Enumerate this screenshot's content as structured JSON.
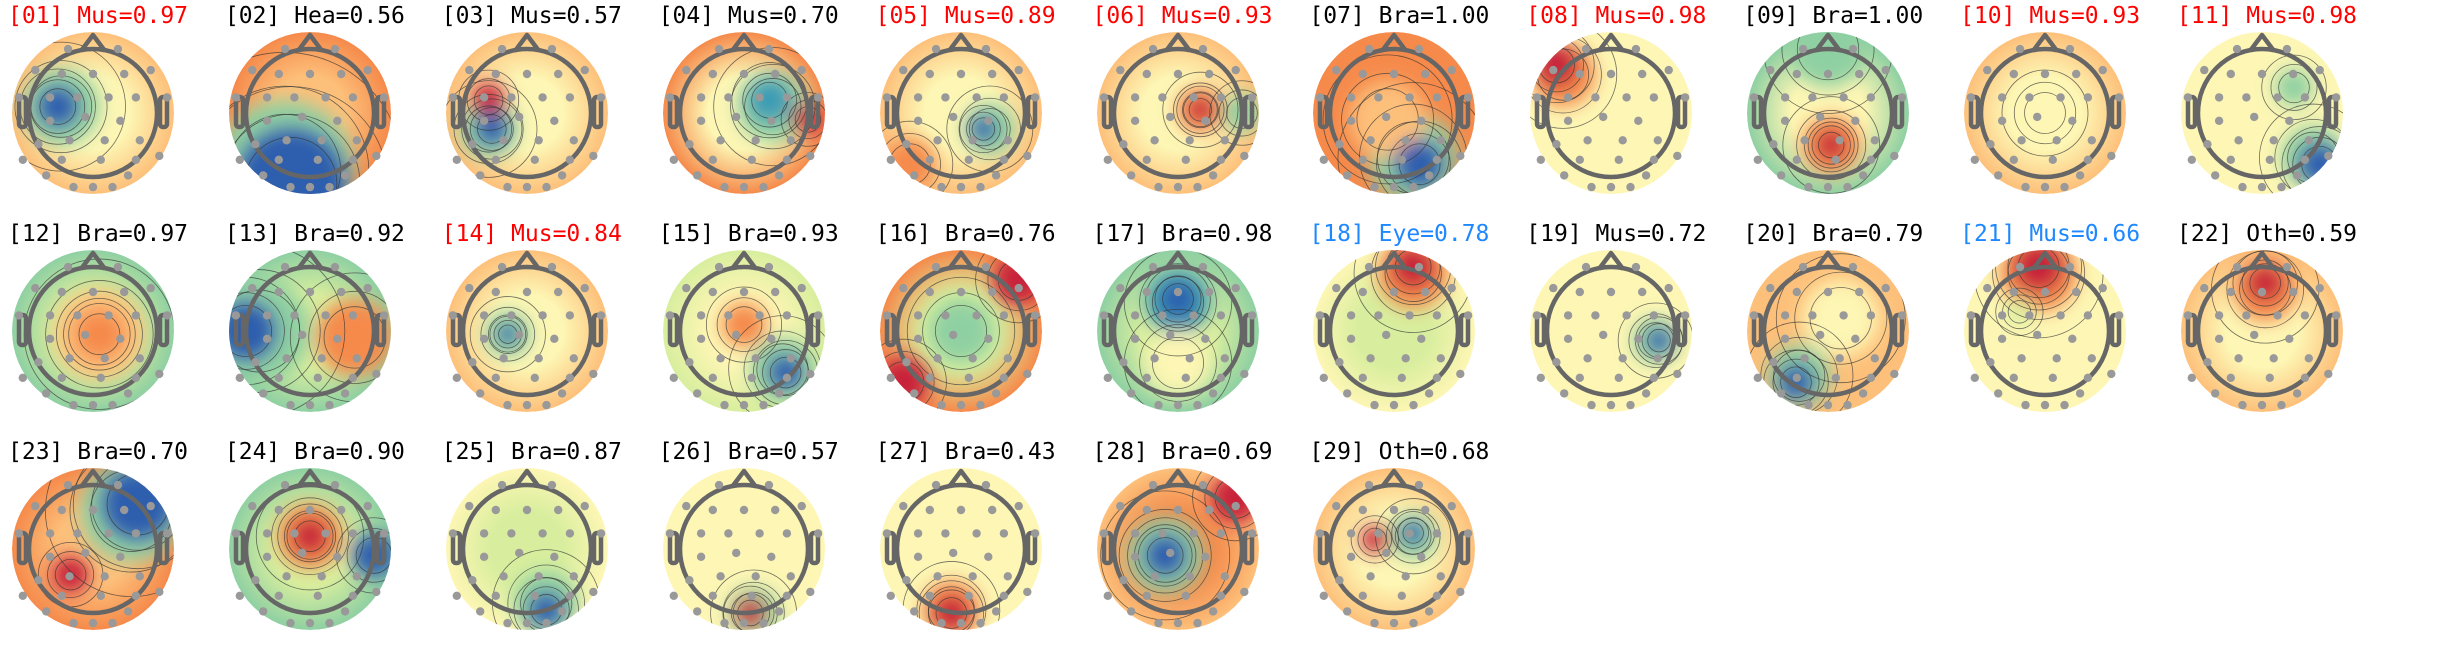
{
  "chart_data": {
    "type": "topomap",
    "layout": {
      "columns": 11,
      "rows": 3
    },
    "colormap": "spectral (red-yellow-blue)",
    "label_colors": {
      "default": "#000000",
      "red": "#ff0000",
      "blue": "#1e88ff"
    },
    "components": [
      {
        "title": "[01] Mus=0.97",
        "color": "red"
      },
      {
        "title": "[02] Hea=0.56",
        "color": "default"
      },
      {
        "title": "[03] Mus=0.57",
        "color": "default"
      },
      {
        "title": "[04] Mus=0.70",
        "color": "default"
      },
      {
        "title": "[05] Mus=0.89",
        "color": "red"
      },
      {
        "title": "[06] Mus=0.93",
        "color": "red"
      },
      {
        "title": "[07] Bra=1.00",
        "color": "default"
      },
      {
        "title": "[08] Mus=0.98",
        "color": "red"
      },
      {
        "title": "[09] Bra=1.00",
        "color": "default"
      },
      {
        "title": "[10] Mus=0.93",
        "color": "red"
      },
      {
        "title": "[11] Mus=0.98",
        "color": "red"
      },
      {
        "title": "[12] Bra=0.97",
        "color": "default"
      },
      {
        "title": "[13] Bra=0.92",
        "color": "default"
      },
      {
        "title": "[14] Mus=0.84",
        "color": "red"
      },
      {
        "title": "[15] Bra=0.93",
        "color": "default"
      },
      {
        "title": "[16] Bra=0.76",
        "color": "default"
      },
      {
        "title": "[17] Bra=0.98",
        "color": "default"
      },
      {
        "title": "[18] Eye=0.78",
        "color": "blue"
      },
      {
        "title": "[19] Mus=0.72",
        "color": "default"
      },
      {
        "title": "[20] Bra=0.79",
        "color": "default"
      },
      {
        "title": "[21] Mus=0.66",
        "color": "blue"
      },
      {
        "title": "[22] Oth=0.59",
        "color": "default"
      },
      {
        "title": "[23] Bra=0.70",
        "color": "default"
      },
      {
        "title": "[24] Bra=0.90",
        "color": "default"
      },
      {
        "title": "[25] Bra=0.87",
        "color": "default"
      },
      {
        "title": "[26] Bra=0.57",
        "color": "default"
      },
      {
        "title": "[27] Bra=0.43",
        "color": "default"
      },
      {
        "title": "[28] Bra=0.69",
        "color": "default"
      },
      {
        "title": "[29] Oth=0.68",
        "color": "default"
      }
    ]
  }
}
